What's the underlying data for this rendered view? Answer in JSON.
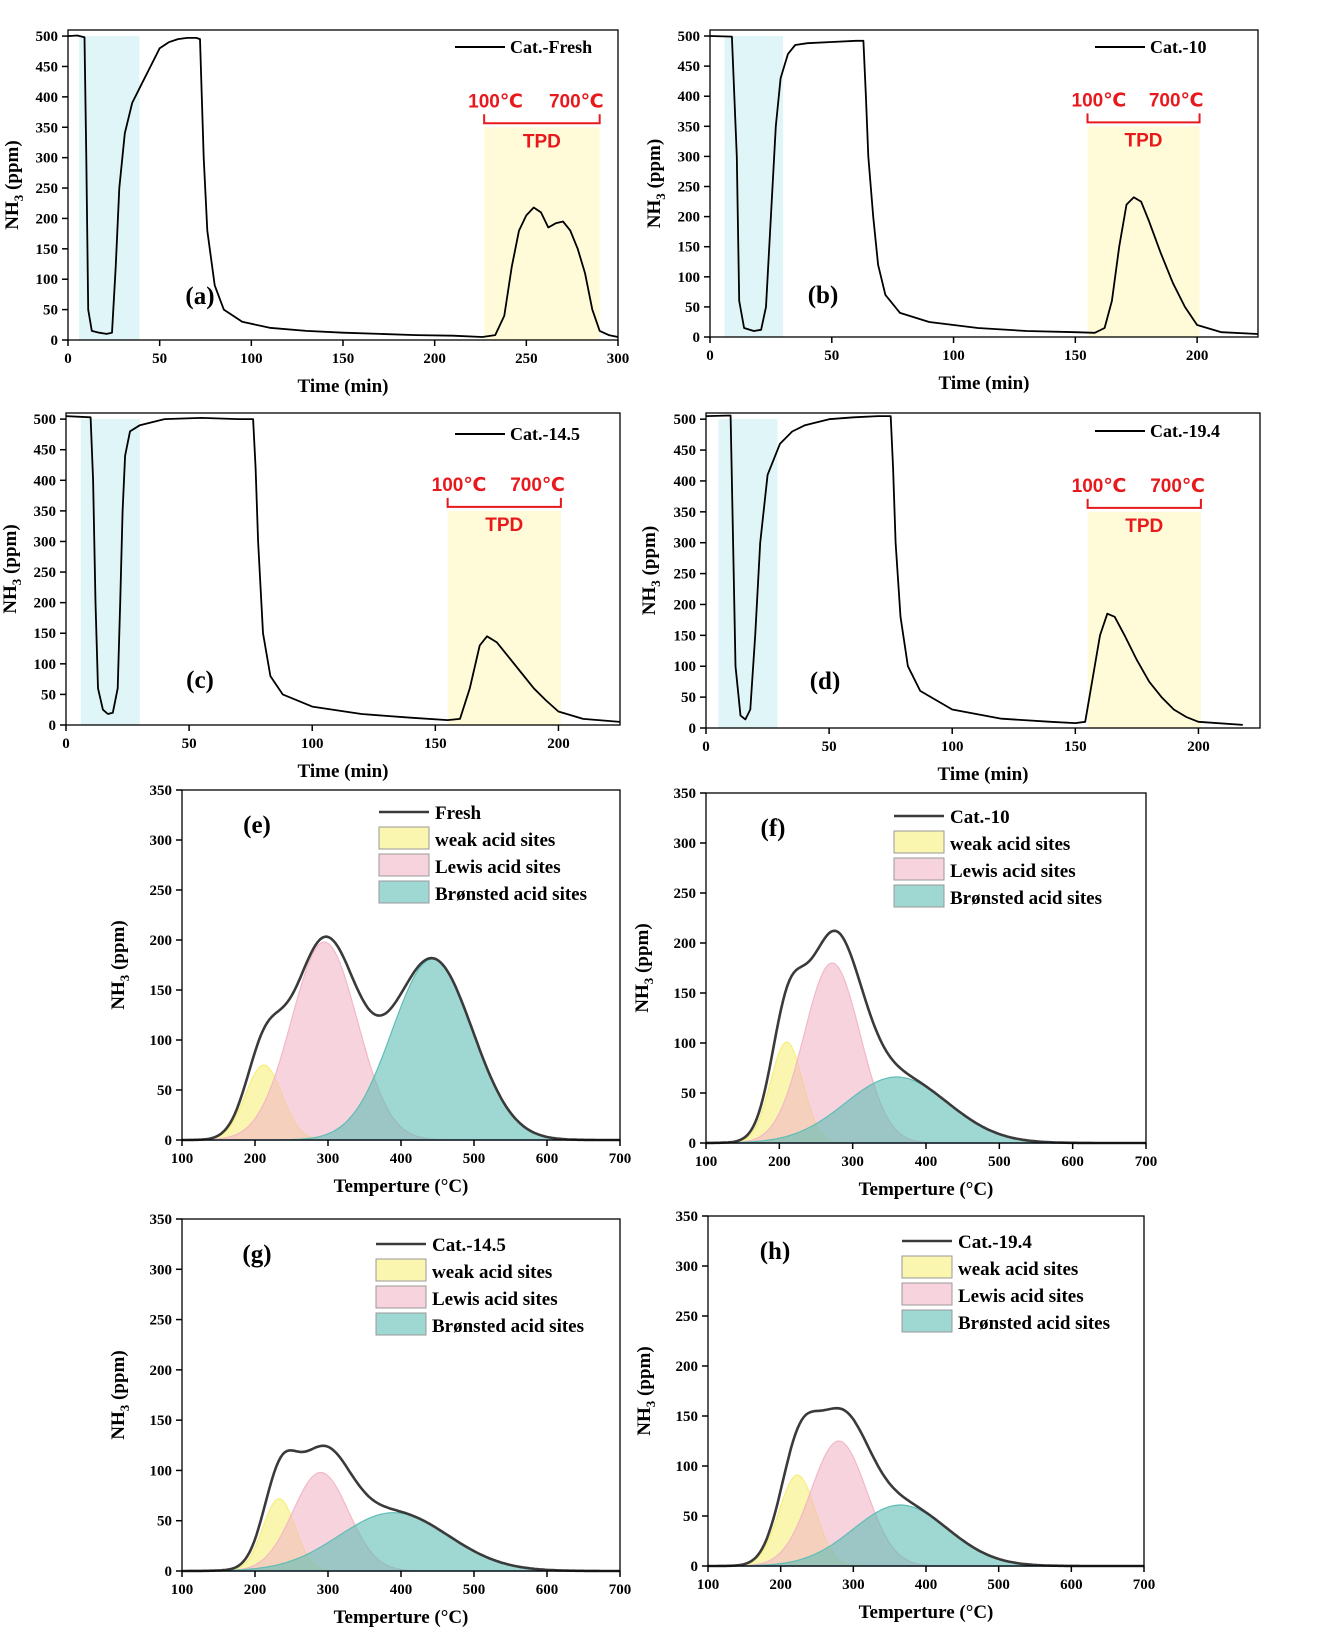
{
  "chart_data": [
    {
      "id": "a",
      "type": "line",
      "panel_label": "(a)",
      "legend": "Cat.-Fresh",
      "xlabel": "Time (min)",
      "ylabel": "NH3 (ppm)",
      "xlim": [
        0,
        300
      ],
      "ylim": [
        0,
        510
      ],
      "xticks": [
        0,
        50,
        100,
        150,
        200,
        250,
        300
      ],
      "yticks": [
        0,
        50,
        100,
        150,
        200,
        250,
        300,
        350,
        400,
        450,
        500
      ],
      "adsorption_window": [
        6,
        39
      ],
      "tpd_window": [
        227,
        290
      ],
      "tpd_label": "TPD",
      "tpd_start": "100℃",
      "tpd_end": "700℃",
      "points": [
        [
          0,
          500
        ],
        [
          5,
          501
        ],
        [
          9,
          498
        ],
        [
          10,
          300
        ],
        [
          11,
          50
        ],
        [
          13,
          15
        ],
        [
          17,
          12
        ],
        [
          21,
          10
        ],
        [
          24,
          12
        ],
        [
          26,
          120
        ],
        [
          28,
          250
        ],
        [
          31,
          340
        ],
        [
          35,
          390
        ],
        [
          40,
          420
        ],
        [
          45,
          450
        ],
        [
          50,
          480
        ],
        [
          55,
          490
        ],
        [
          60,
          495
        ],
        [
          65,
          497
        ],
        [
          70,
          497
        ],
        [
          72,
          495
        ],
        [
          73,
          400
        ],
        [
          74,
          300
        ],
        [
          76,
          180
        ],
        [
          80,
          90
        ],
        [
          85,
          50
        ],
        [
          95,
          30
        ],
        [
          110,
          20
        ],
        [
          130,
          15
        ],
        [
          150,
          12
        ],
        [
          170,
          10
        ],
        [
          190,
          8
        ],
        [
          210,
          7
        ],
        [
          226,
          5
        ],
        [
          233,
          8
        ],
        [
          238,
          40
        ],
        [
          242,
          120
        ],
        [
          246,
          180
        ],
        [
          250,
          205
        ],
        [
          254,
          218
        ],
        [
          258,
          210
        ],
        [
          262,
          185
        ],
        [
          266,
          192
        ],
        [
          270,
          195
        ],
        [
          274,
          180
        ],
        [
          278,
          150
        ],
        [
          282,
          110
        ],
        [
          286,
          50
        ],
        [
          290,
          15
        ],
        [
          295,
          8
        ],
        [
          300,
          5
        ]
      ]
    },
    {
      "id": "b",
      "type": "line",
      "panel_label": "(b)",
      "legend": "Cat.-10",
      "xlabel": "Time (min)",
      "ylabel": "NH3 (ppm)",
      "xlim": [
        0,
        225
      ],
      "ylim": [
        0,
        510
      ],
      "xticks": [
        0,
        50,
        100,
        150,
        200
      ],
      "yticks": [
        0,
        50,
        100,
        150,
        200,
        250,
        300,
        350,
        400,
        450,
        500
      ],
      "adsorption_window": [
        6,
        30
      ],
      "tpd_window": [
        155,
        201
      ],
      "tpd_label": "TPD",
      "tpd_start": "100℃",
      "tpd_end": "700℃",
      "points": [
        [
          0,
          500
        ],
        [
          9,
          499
        ],
        [
          11,
          300
        ],
        [
          12,
          60
        ],
        [
          14,
          15
        ],
        [
          18,
          10
        ],
        [
          21,
          12
        ],
        [
          23,
          50
        ],
        [
          25,
          200
        ],
        [
          27,
          350
        ],
        [
          29,
          430
        ],
        [
          32,
          470
        ],
        [
          35,
          485
        ],
        [
          40,
          488
        ],
        [
          50,
          490
        ],
        [
          60,
          492
        ],
        [
          63,
          492
        ],
        [
          64,
          400
        ],
        [
          65,
          300
        ],
        [
          67,
          200
        ],
        [
          69,
          120
        ],
        [
          72,
          70
        ],
        [
          78,
          40
        ],
        [
          90,
          25
        ],
        [
          110,
          15
        ],
        [
          130,
          10
        ],
        [
          150,
          8
        ],
        [
          158,
          7
        ],
        [
          162,
          15
        ],
        [
          165,
          60
        ],
        [
          168,
          150
        ],
        [
          171,
          220
        ],
        [
          174,
          232
        ],
        [
          177,
          225
        ],
        [
          180,
          195
        ],
        [
          185,
          140
        ],
        [
          190,
          90
        ],
        [
          195,
          50
        ],
        [
          200,
          20
        ],
        [
          210,
          8
        ],
        [
          225,
          5
        ]
      ]
    },
    {
      "id": "c",
      "type": "line",
      "panel_label": "(c)",
      "legend": "Cat.-14.5",
      "xlabel": "Time (min)",
      "ylabel": "NH3 (ppm)",
      "xlim": [
        0,
        225
      ],
      "ylim": [
        0,
        510
      ],
      "xticks": [
        0,
        50,
        100,
        150,
        200
      ],
      "yticks": [
        0,
        50,
        100,
        150,
        200,
        250,
        300,
        350,
        400,
        450,
        500
      ],
      "adsorption_window": [
        6,
        30
      ],
      "tpd_window": [
        155,
        201
      ],
      "tpd_label": "TPD",
      "tpd_start": "100℃",
      "tpd_end": "700℃",
      "points": [
        [
          0,
          505
        ],
        [
          10,
          503
        ],
        [
          11,
          400
        ],
        [
          12,
          200
        ],
        [
          13,
          60
        ],
        [
          15,
          25
        ],
        [
          17,
          18
        ],
        [
          19,
          20
        ],
        [
          21,
          60
        ],
        [
          22,
          200
        ],
        [
          23,
          350
        ],
        [
          24,
          440
        ],
        [
          26,
          480
        ],
        [
          30,
          490
        ],
        [
          40,
          500
        ],
        [
          55,
          502
        ],
        [
          70,
          500
        ],
        [
          76,
          500
        ],
        [
          77,
          420
        ],
        [
          78,
          300
        ],
        [
          80,
          150
        ],
        [
          83,
          80
        ],
        [
          88,
          50
        ],
        [
          100,
          30
        ],
        [
          120,
          18
        ],
        [
          140,
          12
        ],
        [
          155,
          8
        ],
        [
          160,
          10
        ],
        [
          164,
          60
        ],
        [
          168,
          130
        ],
        [
          171,
          145
        ],
        [
          175,
          135
        ],
        [
          180,
          110
        ],
        [
          185,
          85
        ],
        [
          190,
          60
        ],
        [
          195,
          40
        ],
        [
          200,
          22
        ],
        [
          210,
          10
        ],
        [
          225,
          5
        ]
      ]
    },
    {
      "id": "d",
      "type": "line",
      "panel_label": "(d)",
      "legend": "Cat.-19.4",
      "xlabel": "Time (min)",
      "ylabel": "NH3 (ppm)",
      "xlim": [
        0,
        225
      ],
      "ylim": [
        0,
        510
      ],
      "xticks": [
        0,
        50,
        100,
        150,
        200
      ],
      "yticks": [
        0,
        50,
        100,
        150,
        200,
        250,
        300,
        350,
        400,
        450,
        500
      ],
      "adsorption_window": [
        5,
        29
      ],
      "tpd_window": [
        155,
        201
      ],
      "tpd_label": "TPD",
      "tpd_start": "100℃",
      "tpd_end": "700℃",
      "points": [
        [
          0,
          505
        ],
        [
          10,
          506
        ],
        [
          11,
          300
        ],
        [
          12,
          100
        ],
        [
          14,
          20
        ],
        [
          16,
          14
        ],
        [
          18,
          30
        ],
        [
          20,
          150
        ],
        [
          22,
          300
        ],
        [
          25,
          410
        ],
        [
          30,
          460
        ],
        [
          35,
          480
        ],
        [
          40,
          490
        ],
        [
          50,
          500
        ],
        [
          60,
          503
        ],
        [
          70,
          505
        ],
        [
          75,
          505
        ],
        [
          76,
          420
        ],
        [
          77,
          300
        ],
        [
          79,
          180
        ],
        [
          82,
          100
        ],
        [
          87,
          60
        ],
        [
          100,
          30
        ],
        [
          120,
          15
        ],
        [
          140,
          10
        ],
        [
          150,
          8
        ],
        [
          154,
          10
        ],
        [
          157,
          80
        ],
        [
          160,
          150
        ],
        [
          163,
          185
        ],
        [
          166,
          180
        ],
        [
          170,
          150
        ],
        [
          175,
          110
        ],
        [
          180,
          75
        ],
        [
          185,
          50
        ],
        [
          190,
          30
        ],
        [
          195,
          18
        ],
        [
          200,
          10
        ],
        [
          218,
          5
        ]
      ]
    },
    {
      "id": "e",
      "type": "area",
      "panel_label": "(e)",
      "xlabel": "Temperture (°C)",
      "ylabel": "NH3 (ppm)",
      "xlim": [
        100,
        700
      ],
      "ylim": [
        0,
        350
      ],
      "xticks": [
        100,
        200,
        300,
        400,
        500,
        600,
        700
      ],
      "yticks": [
        0,
        50,
        100,
        150,
        200,
        250,
        300,
        350
      ],
      "legend": [
        "Fresh",
        "weak acid sites",
        "Lewis acid sites",
        "Brønsted acid sites"
      ],
      "series": [
        {
          "name": "weak acid sites",
          "amp": 75,
          "center": 212,
          "sigma": 25,
          "color": "#f7ef7a"
        },
        {
          "name": "Lewis acid sites",
          "amp": 198,
          "center": 295,
          "sigma": 45,
          "color": "#f2b8c6"
        },
        {
          "name": "Brønsted acid sites",
          "amp": 181,
          "center": 443,
          "sigma": 55,
          "color": "#5fbdb6"
        }
      ]
    },
    {
      "id": "f",
      "type": "area",
      "panel_label": "(f)",
      "xlabel": "Temperture (°C)",
      "ylabel": "NH3 (ppm)",
      "xlim": [
        100,
        700
      ],
      "ylim": [
        0,
        350
      ],
      "xticks": [
        100,
        200,
        300,
        400,
        500,
        600,
        700
      ],
      "yticks": [
        0,
        50,
        100,
        150,
        200,
        250,
        300,
        350
      ],
      "legend": [
        "Cat.-10",
        "weak acid sites",
        "Lewis acid sites",
        "Brønsted acid sites"
      ],
      "series": [
        {
          "name": "weak acid sites",
          "amp": 101,
          "center": 210,
          "sigma": 22,
          "color": "#f7ef7a"
        },
        {
          "name": "Lewis acid sites",
          "amp": 180,
          "center": 272,
          "sigma": 38,
          "color": "#f2b8c6"
        },
        {
          "name": "Brønsted acid sites",
          "amp": 66,
          "center": 360,
          "sigma": 70,
          "color": "#5fbdb6"
        }
      ]
    },
    {
      "id": "g",
      "type": "area",
      "panel_label": "(g)",
      "xlabel": "Temperture (°C)",
      "ylabel": "NH3 (ppm)",
      "xlim": [
        100,
        700
      ],
      "ylim": [
        0,
        350
      ],
      "xticks": [
        100,
        200,
        300,
        400,
        500,
        600,
        700
      ],
      "yticks": [
        0,
        50,
        100,
        150,
        200,
        250,
        300,
        350
      ],
      "legend": [
        "Cat.-14.5",
        "weak acid sites",
        "Lewis acid sites",
        "Brønsted acid sites"
      ],
      "series": [
        {
          "name": "weak acid sites",
          "amp": 72,
          "center": 233,
          "sigma": 22,
          "color": "#f7ef7a"
        },
        {
          "name": "Lewis acid sites",
          "amp": 98,
          "center": 290,
          "sigma": 38,
          "color": "#f2b8c6"
        },
        {
          "name": "Brønsted acid sites",
          "amp": 58,
          "center": 390,
          "sigma": 75,
          "color": "#5fbdb6"
        }
      ]
    },
    {
      "id": "h",
      "type": "area",
      "panel_label": "(h)",
      "xlabel": "Temperture (°C)",
      "ylabel": "NH3 (ppm)",
      "xlim": [
        100,
        700
      ],
      "ylim": [
        0,
        350
      ],
      "xticks": [
        100,
        200,
        300,
        400,
        500,
        600,
        700
      ],
      "yticks": [
        0,
        50,
        100,
        150,
        200,
        250,
        300,
        350
      ],
      "legend": [
        "Cat.-19.4",
        "weak acid sites",
        "Lewis acid sites",
        "Brønsted acid sites"
      ],
      "series": [
        {
          "name": "weak acid sites",
          "amp": 91,
          "center": 223,
          "sigma": 25,
          "color": "#f7ef7a"
        },
        {
          "name": "Lewis acid sites",
          "amp": 125,
          "center": 280,
          "sigma": 38,
          "color": "#f2b8c6"
        },
        {
          "name": "Brønsted acid sites",
          "amp": 61,
          "center": 365,
          "sigma": 65,
          "color": "#5fbdb6"
        }
      ]
    }
  ],
  "colors": {
    "adsorption_band": "#dff5f7",
    "tpd_band": "#fffbd9",
    "tpd_marker": "#e8191c",
    "envelope": "#3a3a3a",
    "line": "#000000"
  }
}
